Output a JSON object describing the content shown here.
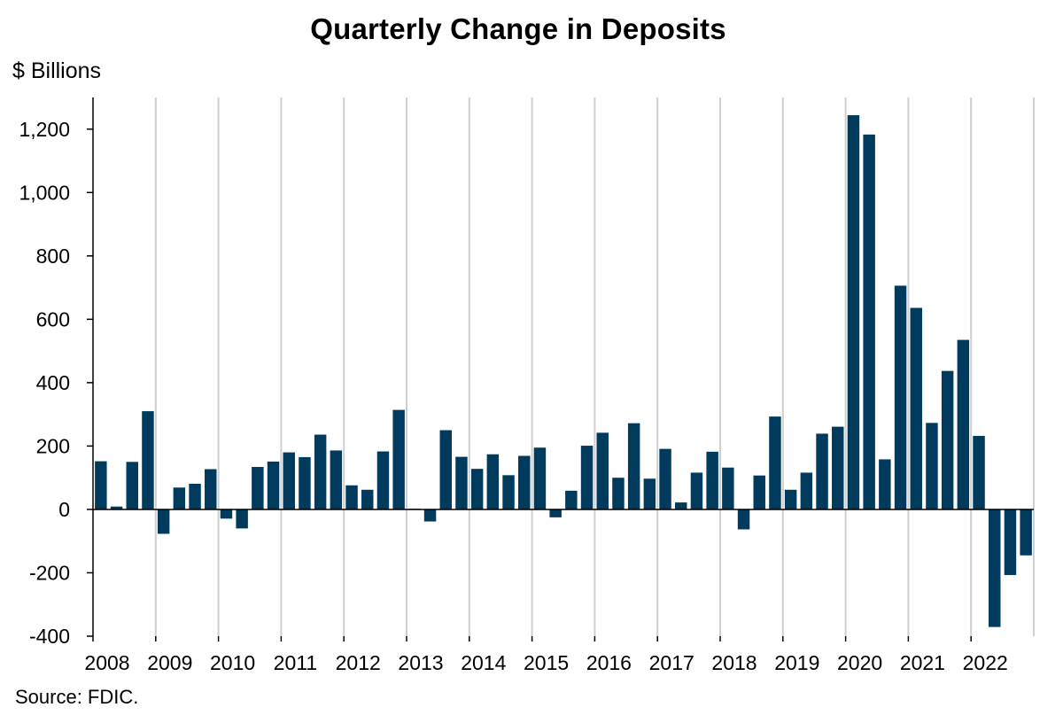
{
  "chart_data": {
    "type": "bar",
    "title": "Quarterly Change in Deposits",
    "ylabel": "$ Billions",
    "xlabel": "",
    "source": "Source: FDIC.",
    "ylim": [
      -400,
      1300
    ],
    "yticks": [
      -400,
      -200,
      0,
      200,
      400,
      600,
      800,
      1000,
      1200
    ],
    "ytick_labels": [
      "-400",
      "-200",
      "0",
      "200",
      "400",
      "600",
      "800",
      "1,000",
      "1,200"
    ],
    "xtick_labels": [
      "2008",
      "2009",
      "2010",
      "2011",
      "2012",
      "2013",
      "2014",
      "2015",
      "2016",
      "2017",
      "2018",
      "2019",
      "2020",
      "2021",
      "2022"
    ],
    "grid": "vertical lines at year boundaries",
    "bar_color": "#003a5d",
    "gridline_color": "#cfcfcf",
    "categories": [
      "2008Q1",
      "2008Q2",
      "2008Q3",
      "2008Q4",
      "2009Q1",
      "2009Q2",
      "2009Q3",
      "2009Q4",
      "2010Q1",
      "2010Q2",
      "2010Q3",
      "2010Q4",
      "2011Q1",
      "2011Q2",
      "2011Q3",
      "2011Q4",
      "2012Q1",
      "2012Q2",
      "2012Q3",
      "2012Q4",
      "2013Q1",
      "2013Q2",
      "2013Q3",
      "2013Q4",
      "2014Q1",
      "2014Q2",
      "2014Q3",
      "2014Q4",
      "2015Q1",
      "2015Q2",
      "2015Q3",
      "2015Q4",
      "2016Q1",
      "2016Q2",
      "2016Q3",
      "2016Q4",
      "2017Q1",
      "2017Q2",
      "2017Q3",
      "2017Q4",
      "2018Q1",
      "2018Q2",
      "2018Q3",
      "2018Q4",
      "2019Q1",
      "2019Q2",
      "2019Q3",
      "2019Q4",
      "2020Q1",
      "2020Q2",
      "2020Q3",
      "2020Q4",
      "2021Q1",
      "2021Q2",
      "2021Q3",
      "2021Q4",
      "2022Q1",
      "2022Q2",
      "2022Q3",
      "2022Q4"
    ],
    "values": [
      152,
      9,
      150,
      310,
      -77,
      69,
      81,
      127,
      -29,
      -60,
      134,
      151,
      180,
      165,
      236,
      186,
      76,
      62,
      183,
      314,
      2,
      -38,
      250,
      166,
      128,
      174,
      108,
      169,
      195,
      -25,
      59,
      201,
      242,
      100,
      272,
      97,
      191,
      22,
      116,
      182,
      132,
      -63,
      107,
      293,
      62,
      116,
      239,
      261,
      1244,
      1183,
      158,
      706,
      636,
      273,
      437,
      535,
      232,
      -371,
      -207,
      -145
    ]
  }
}
